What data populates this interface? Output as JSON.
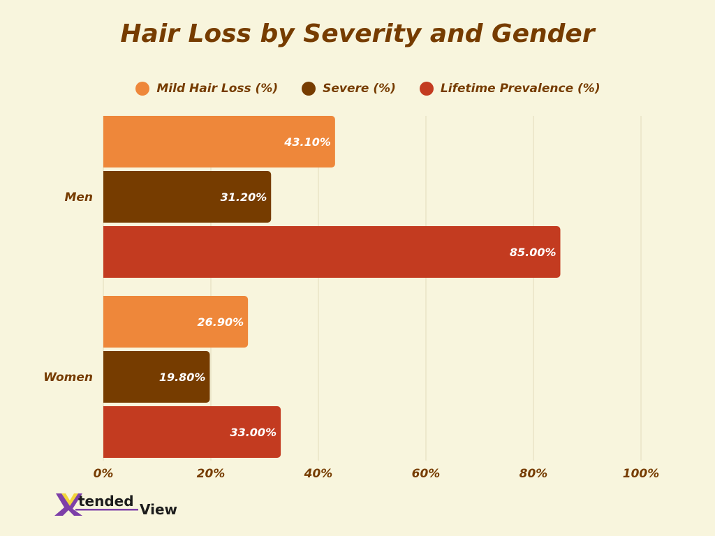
{
  "chart_data": {
    "type": "bar",
    "orientation": "horizontal",
    "title": "Hair Loss by Severity and Gender",
    "categories": [
      "Men",
      "Women"
    ],
    "series": [
      {
        "name": "Mild Hair Loss (%)",
        "color": "#ee873a",
        "values": [
          43.1,
          26.9
        ],
        "labels": [
          "43.10%",
          "26.90%"
        ]
      },
      {
        "name": "Severe (%)",
        "color": "#763c00",
        "values": [
          31.2,
          19.8
        ],
        "labels": [
          "31.20%",
          "19.80%"
        ]
      },
      {
        "name": "Lifetime Prevalence (%)",
        "color": "#c33b20",
        "values": [
          85.0,
          33.0
        ],
        "labels": [
          "85.00%",
          "33.00%"
        ]
      }
    ],
    "xlim": [
      0,
      100
    ],
    "xticks": [
      "0%",
      "20%",
      "40%",
      "60%",
      "80%",
      "100%"
    ],
    "xtick_values": [
      0,
      20,
      40,
      60,
      80,
      100
    ],
    "grid": true,
    "legend_position": "top"
  },
  "logo_text": "XtendedView"
}
